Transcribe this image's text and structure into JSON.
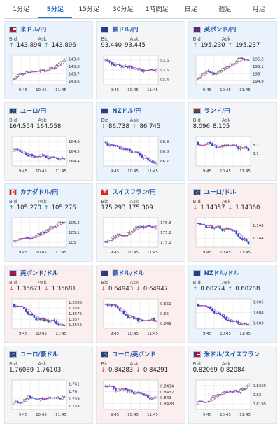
{
  "tabs": [
    {
      "label": "1分足",
      "active": false
    },
    {
      "label": "5分足",
      "active": true
    },
    {
      "label": "15分足",
      "active": false
    },
    {
      "label": "30分足",
      "active": false
    },
    {
      "label": "1時間足",
      "active": false
    },
    {
      "label": "日足",
      "active": false
    },
    {
      "label": "週足",
      "active": false
    },
    {
      "label": "月足",
      "active": false
    }
  ],
  "labels": {
    "bid": "Bid",
    "ask": "Ask"
  },
  "colors": {
    "up_candle": "#ffffff",
    "down_candle": "#2b4dd0",
    "ma_line": "#d63bd6",
    "grid": "#e1e1e1",
    "frame": "#c8c8c8"
  },
  "pairs": [
    {
      "name": "米ドル/円",
      "flag": "us",
      "dir": "up",
      "bid": "143.894",
      "ask": "143.896",
      "chart": {
        "x_labels": [
          "9:45",
          "10:45",
          "11:45"
        ],
        "y_labels": [
          "143.9",
          "143.8",
          "143.7",
          "143.6"
        ],
        "y_range": [
          143.55,
          143.95
        ],
        "trend": "up"
      }
    },
    {
      "name": "豪ドル/円",
      "flag": "au",
      "dir": "flat",
      "bid": "93.440",
      "ask": "93.445",
      "chart": {
        "x_labels": [
          "9:45",
          "10:45",
          "11:45"
        ],
        "y_labels": [
          "93.6",
          "93.5",
          "93.4"
        ],
        "y_range": [
          93.35,
          93.65
        ],
        "trend": "down"
      }
    },
    {
      "name": "英ポンド/円",
      "flag": "gb",
      "dir": "up",
      "bid": "195.230",
      "ask": "195.237",
      "chart": {
        "x_labels": [
          "9:45",
          "10:45",
          "11:45"
        ],
        "y_labels": [
          "195.2",
          "195.1",
          "195",
          "194.9"
        ],
        "y_range": [
          194.85,
          195.25
        ],
        "trend": "up"
      }
    },
    {
      "name": "ユーロ/円",
      "flag": "eu",
      "dir": "flat",
      "bid": "164.554",
      "ask": "164.558",
      "chart": {
        "x_labels": [
          "9:45",
          "10:45",
          "11:45"
        ],
        "y_labels": [
          "164.6",
          "164.5",
          "164.4"
        ],
        "y_range": [
          164.35,
          164.65
        ],
        "trend": "flat"
      }
    },
    {
      "name": "NZドル/円",
      "flag": "nz",
      "dir": "up",
      "bid": "86.738",
      "ask": "86.745",
      "chart": {
        "x_labels": [
          "9:45",
          "10:45",
          "11:45"
        ],
        "y_labels": [
          "86.9",
          "86.8",
          "86.7"
        ],
        "y_range": [
          86.65,
          86.95
        ],
        "trend": "down"
      }
    },
    {
      "name": "ランド/円",
      "flag": "za",
      "dir": "flat",
      "bid": "8.096",
      "ask": "8.105",
      "chart": {
        "x_labels": [
          "9:45",
          "10:45",
          "11:45"
        ],
        "y_labels": [
          "8.11",
          "8.1"
        ],
        "y_range": [
          8.085,
          8.12
        ],
        "trend": "down"
      }
    },
    {
      "name": "カナダドル/円",
      "flag": "ca",
      "dir": "up",
      "bid": "105.270",
      "ask": "105.276",
      "chart": {
        "x_labels": [
          "9:45",
          "10:45",
          "11:45"
        ],
        "y_labels": [
          "105.2",
          "105.1",
          "105"
        ],
        "y_range": [
          104.95,
          105.25
        ],
        "trend": "up"
      }
    },
    {
      "name": "スイスフラン/円",
      "flag": "ch",
      "dir": "flat",
      "bid": "175.293",
      "ask": "175.309",
      "chart": {
        "x_labels": [
          "9:45",
          "10:45",
          "11:45"
        ],
        "y_labels": [
          "175.3",
          "175.2",
          "175.1"
        ],
        "y_range": [
          175.05,
          175.35
        ],
        "trend": "up"
      }
    },
    {
      "name": "ユーロ/ドル",
      "flag": "eu",
      "dir": "down",
      "bid": "1.14357",
      "ask": "1.14360",
      "chart": {
        "x_labels": [
          "9:45",
          "10:45",
          "11:45"
        ],
        "y_labels": [
          "1.145",
          "1.144"
        ],
        "y_range": [
          1.1433,
          1.1456
        ],
        "trend": "down"
      }
    },
    {
      "name": "英ポンド/ドル",
      "flag": "gb",
      "dir": "down",
      "bid": "1.35671",
      "ask": "1.35681",
      "chart": {
        "x_labels": [
          "9:45",
          "10:45",
          "11:45"
        ],
        "y_labels": [
          "1.3585",
          "1.358",
          "1.3575",
          "1.357",
          "1.3565"
        ],
        "y_range": [
          1.3562,
          1.3588
        ],
        "trend": "down"
      }
    },
    {
      "name": "豪ドル/ドル",
      "flag": "au",
      "dir": "down",
      "bid": "0.64943",
      "ask": "0.64947",
      "chart": {
        "x_labels": [
          "9:45",
          "10:45",
          "11:45"
        ],
        "y_labels": [
          "0.651",
          "0.65",
          "0.649"
        ],
        "y_range": [
          0.6485,
          0.6515
        ],
        "trend": "down"
      }
    },
    {
      "name": "NZドル/ドル",
      "flag": "nz",
      "dir": "up",
      "bid": "0.60274",
      "ask": "0.60288",
      "chart": {
        "x_labels": [
          "9:45",
          "10:45",
          "11:45"
        ],
        "y_labels": [
          "0.605",
          "0.604",
          "0.603"
        ],
        "y_range": [
          0.6025,
          0.6053
        ],
        "trend": "down"
      }
    },
    {
      "name": "ユーロ/豪ドル",
      "flag": "eu",
      "dir": "flat",
      "bid": "1.76089",
      "ask": "1.76103",
      "chart": {
        "x_labels": [
          "9:45",
          "10:45",
          "11:45"
        ],
        "y_labels": [
          "1.761",
          "1.76",
          "1.759",
          "1.758"
        ],
        "y_range": [
          1.7575,
          1.7615
        ],
        "trend": "up"
      }
    },
    {
      "name": "ユーロ/英ポンド",
      "flag": "eu",
      "dir": "down",
      "bid": "0.84283",
      "ask": "0.84291",
      "chart": {
        "x_labels": [
          "9:45",
          "10:45",
          "11:45"
        ],
        "y_labels": [
          "0.8434",
          "0.8432",
          "0.843",
          "0.8428"
        ],
        "y_range": [
          0.8426,
          0.8436
        ],
        "trend": "down"
      }
    },
    {
      "name": "米ドル/スイスフラン",
      "flag": "us",
      "dir": "flat",
      "bid": "0.82069",
      "ask": "0.82084",
      "chart": {
        "x_labels": [
          "9:45",
          "10:45",
          "11:45"
        ],
        "y_labels": [
          "0.8205",
          "0.82",
          "0.8195"
        ],
        "y_range": [
          0.8192,
          0.8208
        ],
        "trend": "up"
      }
    }
  ]
}
